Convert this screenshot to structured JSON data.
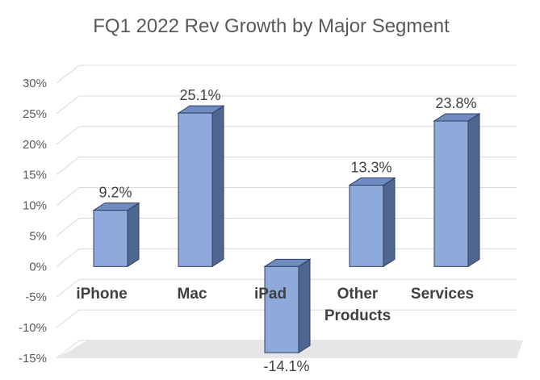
{
  "chart_data": {
    "type": "bar",
    "title": "FQ1 2022 Rev Growth by Major Segment",
    "categories": [
      [
        "iPhone"
      ],
      [
        "Mac"
      ],
      [
        "iPad"
      ],
      [
        "Other",
        "Products"
      ],
      [
        "Services"
      ]
    ],
    "values": [
      9.2,
      25.1,
      -14.1,
      13.3,
      23.8
    ],
    "data_labels": [
      "9.2%",
      "25.1%",
      "-14.1%",
      "13.3%",
      "23.8%"
    ],
    "ylim": [
      -15,
      30
    ],
    "yticks": [
      30,
      25,
      20,
      15,
      10,
      5,
      0,
      -5,
      -10,
      -15
    ],
    "ytick_labels": [
      "30%",
      "25%",
      "20%",
      "15%",
      "10%",
      "5%",
      "0%",
      "-5%",
      "-10%",
      "-15%"
    ],
    "grid": true,
    "style": "3d-column",
    "colors": {
      "bar_front": "#8eaadb",
      "bar_side": "#4f6690",
      "bar_top": "#6f8cc0",
      "bar_outline": "#2f3f63",
      "grid": "#d9d9d9",
      "floor": "#e6e6e6"
    }
  }
}
